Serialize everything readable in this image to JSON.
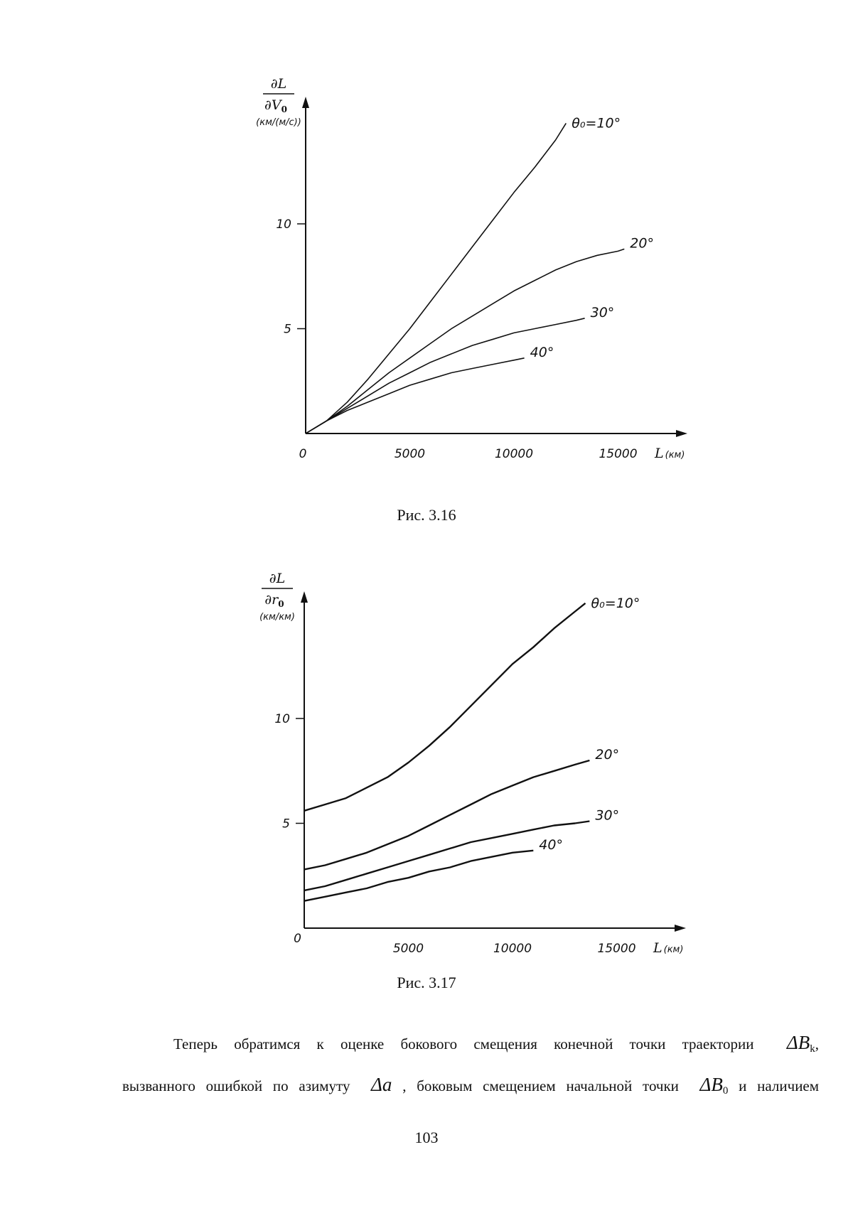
{
  "chart_data": [
    {
      "type": "line",
      "caption": "Рис. 3.16",
      "ylabel_num": "∂L",
      "ylabel_den": "∂V",
      "ylabel_den_sub": "0",
      "ylabel_units": "(км/(м/с))",
      "xlabel": "L",
      "xlabel_units": "(км)",
      "origin_label": "0",
      "xticks": [
        5000,
        10000,
        15000
      ],
      "yticks": [
        5,
        10
      ],
      "xlim": [
        0,
        18500
      ],
      "ylim": [
        0,
        16.5
      ],
      "grid": false,
      "series": [
        {
          "name": "θ₀=10°",
          "x": [
            0,
            1000,
            2000,
            3000,
            4000,
            5000,
            6000,
            7000,
            8000,
            9000,
            10000,
            11000,
            12000,
            12500
          ],
          "y": [
            0,
            0.6,
            1.5,
            2.6,
            3.8,
            5.0,
            6.3,
            7.6,
            8.9,
            10.2,
            11.5,
            12.7,
            14.0,
            14.8
          ]
        },
        {
          "name": "20°",
          "x": [
            0,
            1000,
            2000,
            3000,
            4000,
            5000,
            6000,
            7000,
            8000,
            9000,
            10000,
            11000,
            12000,
            13000,
            14000,
            15000,
            15300
          ],
          "y": [
            0,
            0.6,
            1.3,
            2.1,
            2.9,
            3.6,
            4.3,
            5.0,
            5.6,
            6.2,
            6.8,
            7.3,
            7.8,
            8.2,
            8.5,
            8.7,
            8.8
          ]
        },
        {
          "name": "30°",
          "x": [
            0,
            1000,
            2000,
            3000,
            4000,
            5000,
            6000,
            7000,
            8000,
            9000,
            10000,
            11000,
            12000,
            13000,
            13400
          ],
          "y": [
            0,
            0.6,
            1.2,
            1.8,
            2.4,
            2.9,
            3.4,
            3.8,
            4.2,
            4.5,
            4.8,
            5.0,
            5.2,
            5.4,
            5.5
          ]
        },
        {
          "name": "40°",
          "x": [
            0,
            1000,
            2000,
            3000,
            4000,
            5000,
            6000,
            7000,
            8000,
            9000,
            10000,
            10500
          ],
          "y": [
            0,
            0.6,
            1.1,
            1.5,
            1.9,
            2.3,
            2.6,
            2.9,
            3.1,
            3.3,
            3.5,
            3.6
          ]
        }
      ]
    },
    {
      "type": "line",
      "caption": "Рис. 3.17",
      "ylabel_num": "∂L",
      "ylabel_den": "∂r",
      "ylabel_den_sub": "0",
      "ylabel_units": "(км/км)",
      "xlabel": "L",
      "xlabel_units": "(км)",
      "origin_label": "0",
      "xticks": [
        5000,
        10000,
        15000
      ],
      "yticks": [
        5,
        10
      ],
      "xlim": [
        0,
        18500
      ],
      "ylim": [
        0,
        16.5
      ],
      "grid": false,
      "series": [
        {
          "name": "θ₀=10°",
          "x": [
            0,
            1000,
            2000,
            3000,
            4000,
            5000,
            6000,
            7000,
            8000,
            9000,
            10000,
            11000,
            12000,
            13000,
            13500
          ],
          "y": [
            5.6,
            5.9,
            6.2,
            6.7,
            7.2,
            7.9,
            8.7,
            9.6,
            10.6,
            11.6,
            12.6,
            13.4,
            14.3,
            15.1,
            15.5
          ]
        },
        {
          "name": "20°",
          "x": [
            0,
            1000,
            2000,
            3000,
            4000,
            5000,
            6000,
            7000,
            8000,
            9000,
            10000,
            11000,
            12000,
            13000,
            13700
          ],
          "y": [
            2.8,
            3.0,
            3.3,
            3.6,
            4.0,
            4.4,
            4.9,
            5.4,
            5.9,
            6.4,
            6.8,
            7.2,
            7.5,
            7.8,
            8.0
          ]
        },
        {
          "name": "30°",
          "x": [
            0,
            1000,
            2000,
            3000,
            4000,
            5000,
            6000,
            7000,
            8000,
            9000,
            10000,
            11000,
            12000,
            13000,
            13700
          ],
          "y": [
            1.8,
            2.0,
            2.3,
            2.6,
            2.9,
            3.2,
            3.5,
            3.8,
            4.1,
            4.3,
            4.5,
            4.7,
            4.9,
            5.0,
            5.1
          ]
        },
        {
          "name": "40°",
          "x": [
            0,
            1000,
            2000,
            3000,
            4000,
            5000,
            6000,
            7000,
            8000,
            9000,
            10000,
            11000
          ],
          "y": [
            1.3,
            1.5,
            1.7,
            1.9,
            2.2,
            2.4,
            2.7,
            2.9,
            3.2,
            3.4,
            3.6,
            3.7
          ]
        }
      ]
    }
  ],
  "text": {
    "line1_a": "Теперь обратимся к оценке бокового смещения конечной точки траектории",
    "line1_math": "ΔB",
    "line1_math_sub": "k",
    "line1_b": ",",
    "line2_a": "вызванного ошибкой по азимуту",
    "line2_math1": "Δa",
    "line2_b": ", боковым смещением начальной точки",
    "line2_math2": "ΔB",
    "line2_math2_sub": "0",
    "line2_c": "и наличием"
  },
  "page_number": "103"
}
